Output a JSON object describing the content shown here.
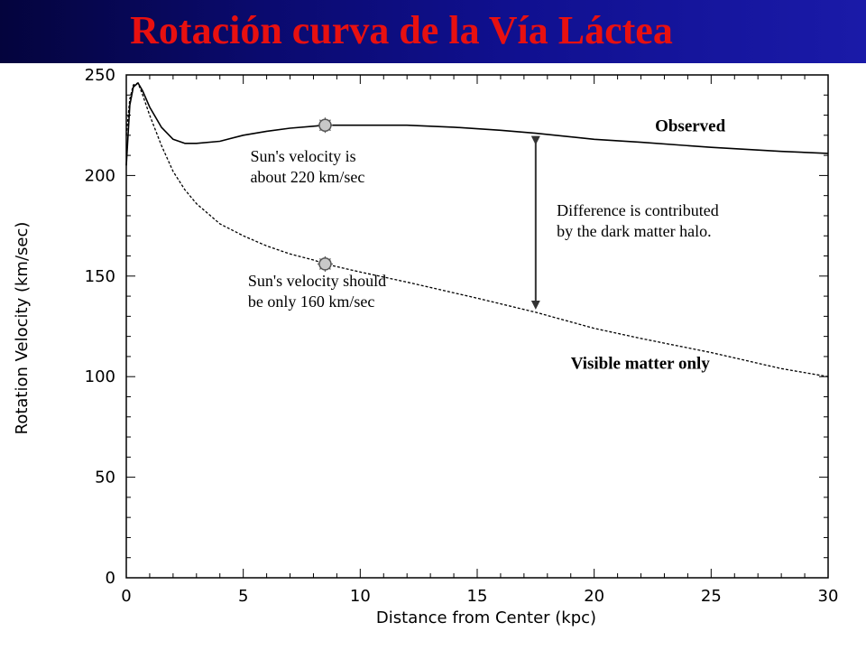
{
  "title": "Rotación curva de la Vía Láctea",
  "colors": {
    "banner": "#0a0a6e",
    "title": "#e81010",
    "curve": "#000000",
    "marker": "#888888"
  },
  "chart_data": {
    "type": "line",
    "xlabel": "Distance from Center (kpc)",
    "ylabel": "Rotation Velocity (km/sec)",
    "xlim": [
      0,
      30
    ],
    "ylim": [
      0,
      250
    ],
    "xticks": [
      0,
      5,
      10,
      15,
      20,
      25,
      30
    ],
    "yticks": [
      0,
      50,
      100,
      150,
      200,
      250
    ],
    "grid": false,
    "series": [
      {
        "name": "Observed",
        "style": "solid",
        "x": [
          0,
          0.15,
          0.3,
          0.5,
          0.7,
          1.0,
          1.5,
          2.0,
          2.5,
          3.0,
          4.0,
          5.0,
          6.0,
          7.0,
          8.0,
          8.5,
          9.0,
          10.0,
          12.0,
          14.0,
          16.0,
          17.5,
          20.0,
          22.0,
          25.0,
          28.0,
          30.0
        ],
        "y": [
          205,
          235,
          244,
          246,
          242,
          234,
          224,
          218,
          216,
          216,
          217,
          220,
          222,
          223.5,
          224.5,
          225,
          225,
          225,
          225,
          224,
          222.5,
          221,
          218,
          216.5,
          214,
          212,
          211
        ]
      },
      {
        "name": "Visible matter only",
        "style": "dashed",
        "x": [
          0,
          0.15,
          0.3,
          0.5,
          0.7,
          1.0,
          1.5,
          2.0,
          2.5,
          3.0,
          4.0,
          5.0,
          6.0,
          7.0,
          8.0,
          8.5,
          10.0,
          12.0,
          15.0,
          17.5,
          20.0,
          22.0,
          25.0,
          28.0,
          30.0
        ],
        "y": [
          220,
          238,
          245,
          246,
          240,
          230,
          215,
          202,
          193,
          186,
          176,
          170,
          165,
          161,
          158,
          156,
          152,
          147,
          139,
          132,
          124,
          119,
          112,
          104,
          100
        ]
      }
    ],
    "markers": [
      {
        "x": 8.5,
        "y": 225
      },
      {
        "x": 8.5,
        "y": 156
      }
    ],
    "arrow": {
      "x": 17.5,
      "y_from": 221,
      "y_to": 132
    },
    "annotations": [
      {
        "lines": [
          "Observed"
        ],
        "bold": true,
        "x": 22.6,
        "y": 222
      },
      {
        "lines": [
          "Sun's velocity is",
          "about 220 km/sec"
        ],
        "x": 5.3,
        "y": 207
      },
      {
        "lines": [
          "Difference is contributed",
          "by the dark matter halo."
        ],
        "x": 18.4,
        "y": 180
      },
      {
        "lines": [
          "Sun's velocity should",
          "be only 160 km/sec"
        ],
        "x": 5.2,
        "y": 145
      },
      {
        "lines": [
          "Visible matter only"
        ],
        "bold": true,
        "x": 19,
        "y": 104
      }
    ]
  }
}
